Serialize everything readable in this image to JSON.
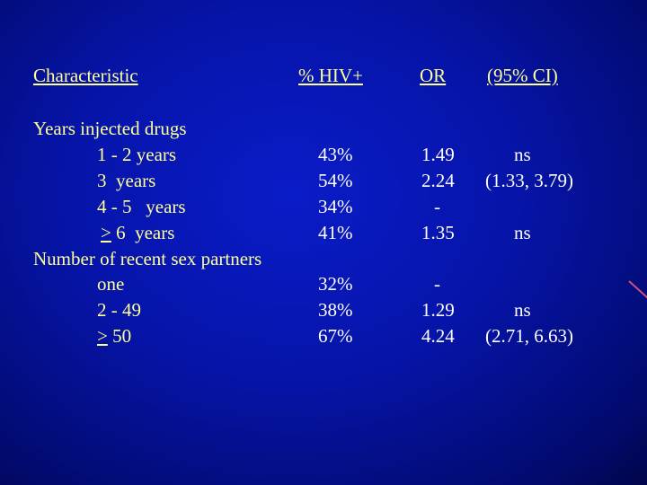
{
  "headers": {
    "characteristic": "Characteristic",
    "hiv": "% HIV+",
    "or": "OR",
    "ci": "(95% CI)"
  },
  "section1": {
    "title": "Years injected drugs",
    "rows": [
      {
        "label": "1 - 2 years",
        "hiv": "43%",
        "or": "1.49",
        "ci": "ns"
      },
      {
        "label": "3  years",
        "hiv": "54%",
        "or": "2.24",
        "ci": "(1.33, 3.79)"
      },
      {
        "label": "4 - 5   years",
        "hiv": "34%",
        "or": "-",
        "ci": ""
      },
      {
        "label_symbol": ">",
        "label_rest": " 6  years",
        "hiv": "41%",
        "or": "1.35",
        "ci": "ns"
      }
    ]
  },
  "section2": {
    "title": "Number of recent sex partners",
    "rows": [
      {
        "label": "one",
        "hiv": "32%",
        "or": "-",
        "ci": ""
      },
      {
        "label": "2 - 49",
        "hiv": "38%",
        "or": "1.29",
        "ci": "ns"
      },
      {
        "label_symbol": ">",
        "label_rest": " 50",
        "hiv": "67%",
        "or": "4.24",
        "ci": "(2.71, 6.63)"
      }
    ]
  },
  "colors": {
    "background": "#0614a8",
    "label_text": "#ffff99",
    "value_text": "#ffffff"
  }
}
